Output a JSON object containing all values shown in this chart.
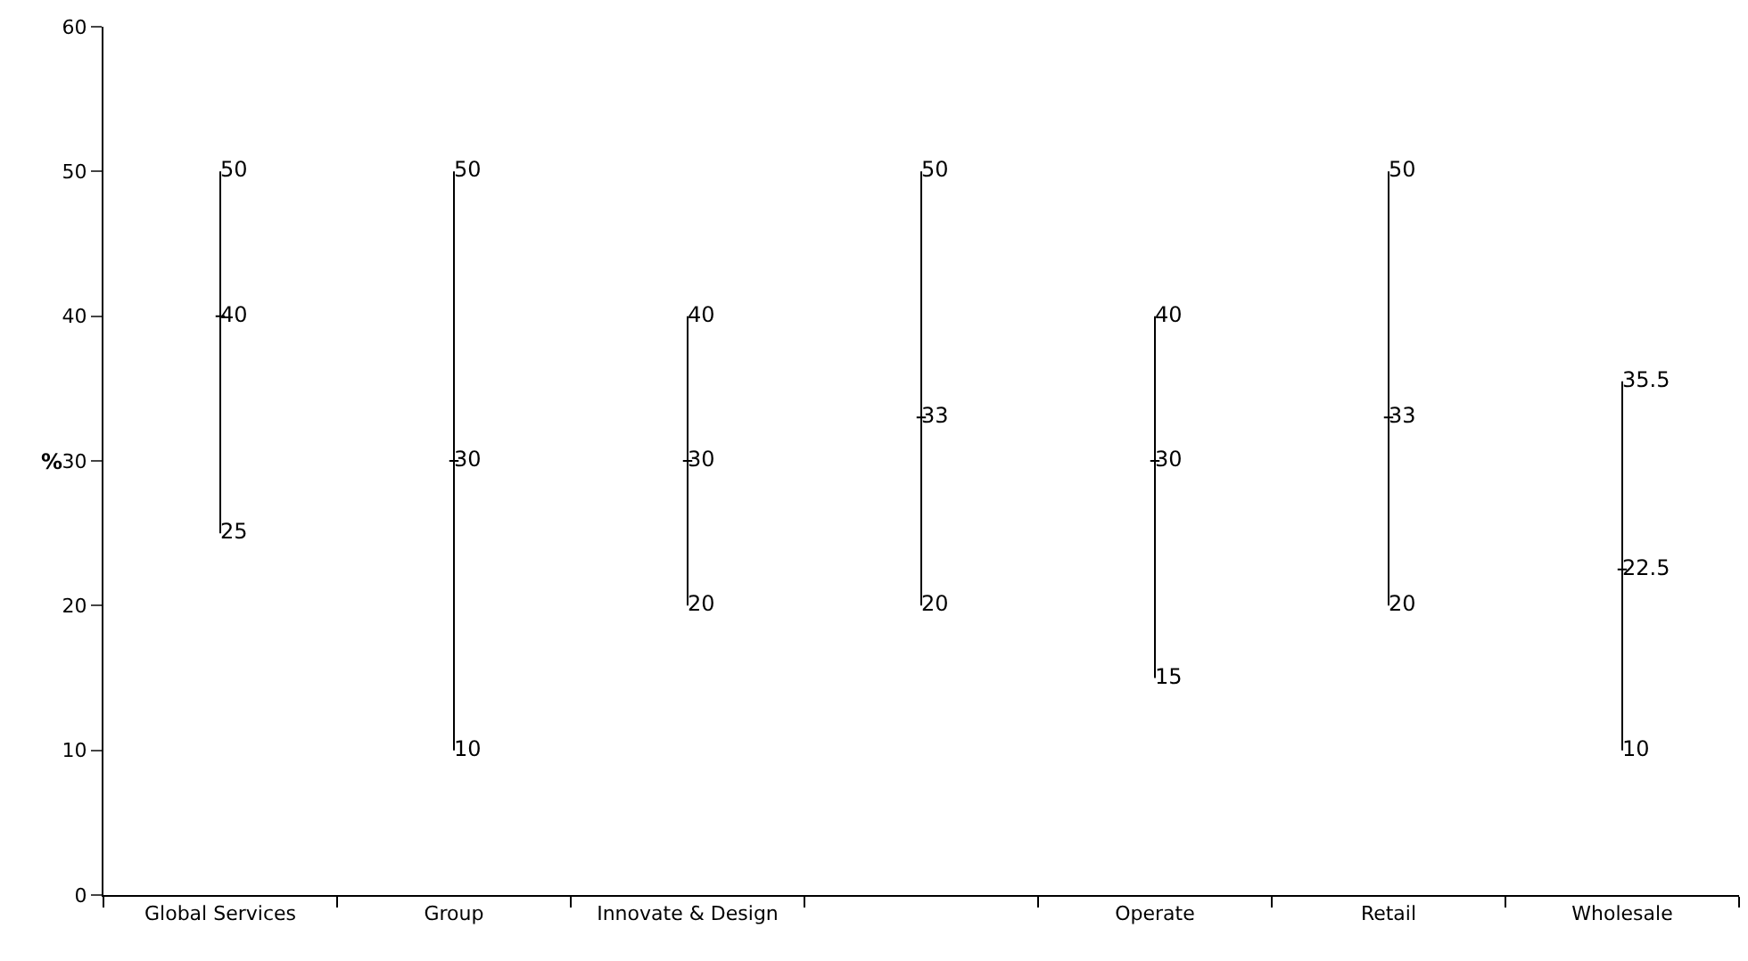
{
  "chart_data": {
    "type": "box",
    "ylabel": "%",
    "categories": [
      "Global Services",
      "Group",
      "Innovate & Design",
      null,
      "Operate",
      "Retail",
      "Wholesale"
    ],
    "boxes": [
      {
        "low": 25,
        "q1": 40,
        "median": 40,
        "q3": 40,
        "high": 50
      },
      {
        "low": 10,
        "q1": 30,
        "median": 30,
        "q3": 30,
        "high": 50
      },
      {
        "low": 20,
        "q1": 30,
        "median": 30,
        "q3": 30,
        "high": 40
      },
      {
        "low": 20,
        "q1": 33,
        "median": 33,
        "q3": 33,
        "high": 50
      },
      {
        "low": 15,
        "q1": 30,
        "median": 30,
        "q3": 30,
        "high": 40
      },
      {
        "low": 20,
        "q1": 33,
        "median": 33,
        "q3": 33,
        "high": 50
      },
      {
        "low": 10,
        "q1": 22.5,
        "median": 22.5,
        "q3": 22.5,
        "high": 35.5
      }
    ],
    "value_labels": [
      [
        "25",
        "40",
        "50"
      ],
      [
        "10",
        "30",
        "50"
      ],
      [
        "20",
        "30",
        "40"
      ],
      [
        "20",
        "33",
        "50"
      ],
      [
        "15",
        "30",
        "40"
      ],
      [
        "20",
        "33",
        "50"
      ],
      [
        "10",
        "22.5",
        "35.5"
      ]
    ],
    "color": "#000000",
    "ylim": [
      0,
      60
    ],
    "yticks": [
      0,
      10,
      20,
      30,
      40,
      50,
      60
    ]
  }
}
